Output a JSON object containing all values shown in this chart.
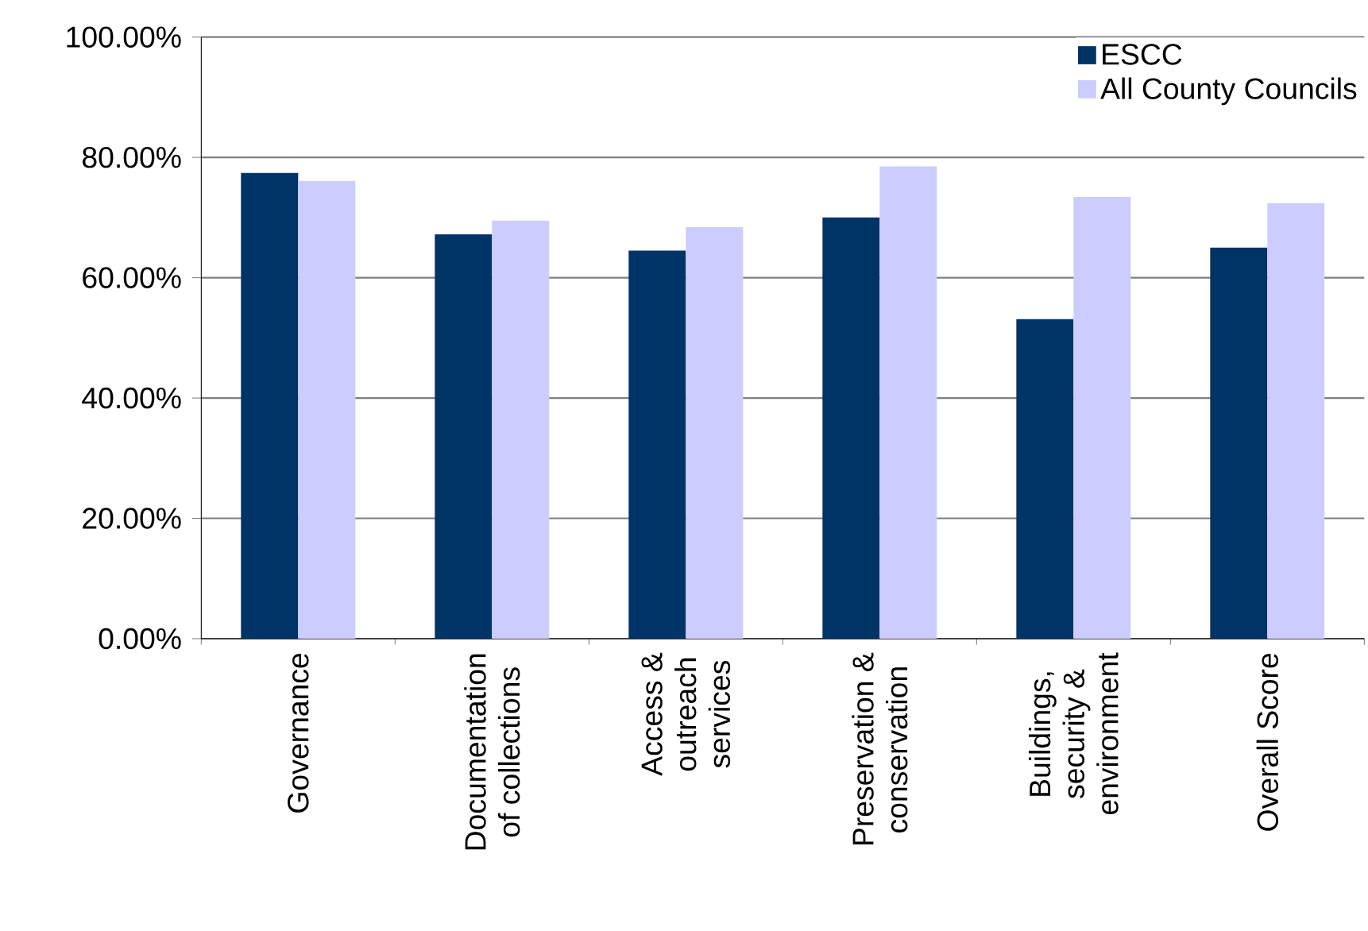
{
  "chart_data": {
    "type": "bar",
    "categories": [
      "Governance",
      "Documentation of collections",
      "Access & outreach services",
      "Preservation & conservation",
      "Buildings, security & environment",
      "Overall Score"
    ],
    "series": [
      {
        "name": "ESCC",
        "color": "#003366",
        "values": [
          77.4,
          67.2,
          64.5,
          70.0,
          53.1,
          65.0
        ]
      },
      {
        "name": "All County Councils",
        "color": "#ccccff",
        "values": [
          76.1,
          69.5,
          68.4,
          78.5,
          73.4,
          72.4
        ]
      }
    ],
    "ylim": [
      0,
      100
    ],
    "yticks": [
      {
        "value": 0,
        "label": "0.00%"
      },
      {
        "value": 20,
        "label": "20.00%"
      },
      {
        "value": 40,
        "label": "40.00%"
      },
      {
        "value": 60,
        "label": "60.00%"
      },
      {
        "value": 80,
        "label": "80.00%"
      },
      {
        "value": 100,
        "label": "100.00%"
      }
    ],
    "grid": "y",
    "legend": "top right"
  }
}
